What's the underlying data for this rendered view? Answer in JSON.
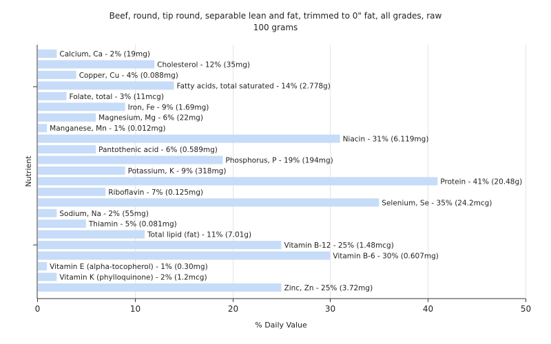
{
  "chart_data": {
    "type": "bar",
    "orientation": "horizontal",
    "title": "Beef, round, tip round, separable lean and fat, trimmed to 0\" fat, all grades, raw",
    "subtitle": "100 grams",
    "xlabel": "% Daily Value",
    "ylabel": "Nutrient",
    "xlim": [
      0,
      50
    ],
    "xticks": [
      0,
      10,
      20,
      30,
      40,
      50
    ],
    "grid": true,
    "bar_color": "#c6dcf8",
    "categories": [
      "Calcium, Ca",
      "Cholesterol",
      "Copper, Cu",
      "Fatty acids, total saturated",
      "Folate, total",
      "Iron, Fe",
      "Magnesium, Mg",
      "Manganese, Mn",
      "Niacin",
      "Pantothenic acid",
      "Phosphorus, P",
      "Potassium, K",
      "Protein",
      "Riboflavin",
      "Selenium, Se",
      "Sodium, Na",
      "Thiamin",
      "Total lipid (fat)",
      "Vitamin B-12",
      "Vitamin B-6",
      "Vitamin E (alpha-tocopherol)",
      "Vitamin K (phylloquinone)",
      "Zinc, Zn"
    ],
    "values": [
      2,
      12,
      4,
      14,
      3,
      9,
      6,
      1,
      31,
      6,
      19,
      9,
      41,
      7,
      35,
      2,
      5,
      11,
      25,
      30,
      1,
      2,
      25
    ],
    "labels": [
      "Calcium, Ca - 2% (19mg)",
      "Cholesterol - 12% (35mg)",
      "Copper, Cu - 4% (0.088mg)",
      "Fatty acids, total saturated - 14% (2.778g)",
      "Folate, total - 3% (11mcg)",
      "Iron, Fe - 9% (1.69mg)",
      "Magnesium, Mg - 6% (22mg)",
      "Manganese, Mn - 1% (0.012mg)",
      "Niacin - 31% (6.119mg)",
      "Pantothenic acid - 6% (0.589mg)",
      "Phosphorus, P - 19% (194mg)",
      "Potassium, K - 9% (318mg)",
      "Protein - 41% (20.48g)",
      "Riboflavin - 7% (0.125mg)",
      "Selenium, Se - 35% (24.2mcg)",
      "Sodium, Na - 2% (55mg)",
      "Thiamin - 5% (0.081mg)",
      "Total lipid (fat) - 11% (7.01g)",
      "Vitamin B-12 - 25% (1.48mcg)",
      "Vitamin B-6 - 30% (0.607mg)",
      "Vitamin E (alpha-tocopherol) - 1% (0.30mg)",
      "Vitamin K (phylloquinone) - 2% (1.2mcg)",
      "Zinc, Zn - 25% (3.72mg)"
    ]
  }
}
